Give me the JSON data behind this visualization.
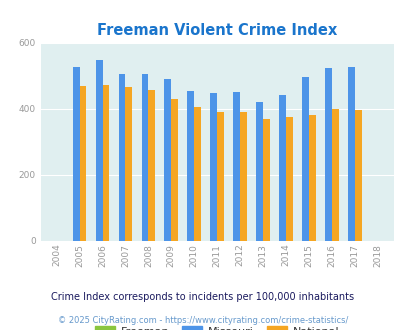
{
  "title": "Freeman Violent Crime Index",
  "years": [
    2004,
    2005,
    2006,
    2007,
    2008,
    2009,
    2010,
    2011,
    2012,
    2013,
    2014,
    2015,
    2016,
    2017,
    2018
  ],
  "missouri": [
    0,
    528,
    548,
    505,
    505,
    492,
    455,
    448,
    452,
    420,
    443,
    498,
    523,
    528,
    0
  ],
  "national": [
    0,
    469,
    472,
    465,
    456,
    430,
    405,
    392,
    392,
    368,
    376,
    383,
    400,
    397,
    0
  ],
  "freeman": [
    0,
    0,
    0,
    0,
    0,
    0,
    0,
    0,
    0,
    0,
    0,
    0,
    0,
    0,
    0
  ],
  "missouri_color": "#4d94e8",
  "national_color": "#f5a623",
  "freeman_color": "#8ac63f",
  "background_color": "#e0eff0",
  "ylim": [
    0,
    600
  ],
  "yticks": [
    0,
    200,
    400,
    600
  ],
  "subtitle": "Crime Index corresponds to incidents per 100,000 inhabitants",
  "copyright": "© 2025 CityRating.com - https://www.cityrating.com/crime-statistics/",
  "title_color": "#1a75cc",
  "subtitle_color": "#1a1a5e",
  "copyright_color": "#6699cc"
}
